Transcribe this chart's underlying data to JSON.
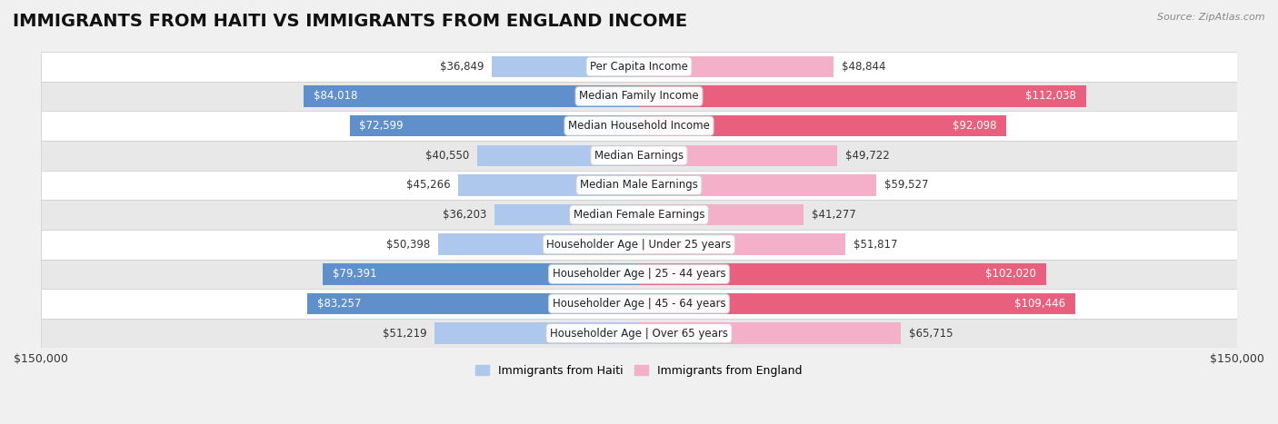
{
  "title": "IMMIGRANTS FROM HAITI VS IMMIGRANTS FROM ENGLAND INCOME",
  "source": "Source: ZipAtlas.com",
  "categories": [
    "Per Capita Income",
    "Median Family Income",
    "Median Household Income",
    "Median Earnings",
    "Median Male Earnings",
    "Median Female Earnings",
    "Householder Age | Under 25 years",
    "Householder Age | 25 - 44 years",
    "Householder Age | 45 - 64 years",
    "Householder Age | Over 65 years"
  ],
  "haiti_values": [
    36849,
    84018,
    72599,
    40550,
    45266,
    36203,
    50398,
    79391,
    83257,
    51219
  ],
  "england_values": [
    48844,
    112038,
    92098,
    49722,
    59527,
    41277,
    51817,
    102020,
    109446,
    65715
  ],
  "haiti_color_light": "#adc8ec",
  "haiti_color_dark": "#6090cc",
  "england_color_light": "#f4b0c8",
  "england_color_dark": "#e8607e",
  "max_value": 150000,
  "haiti_label": "Immigrants from Haiti",
  "england_label": "Immigrants from England",
  "background_color": "#f0f0f0",
  "row_bg_color": "#ffffff",
  "row_alt_color": "#e8e8e8",
  "title_fontsize": 14,
  "label_fontsize": 8.5,
  "tick_fontsize": 9,
  "haiti_dark_threshold": 72000,
  "england_dark_threshold": 90000
}
